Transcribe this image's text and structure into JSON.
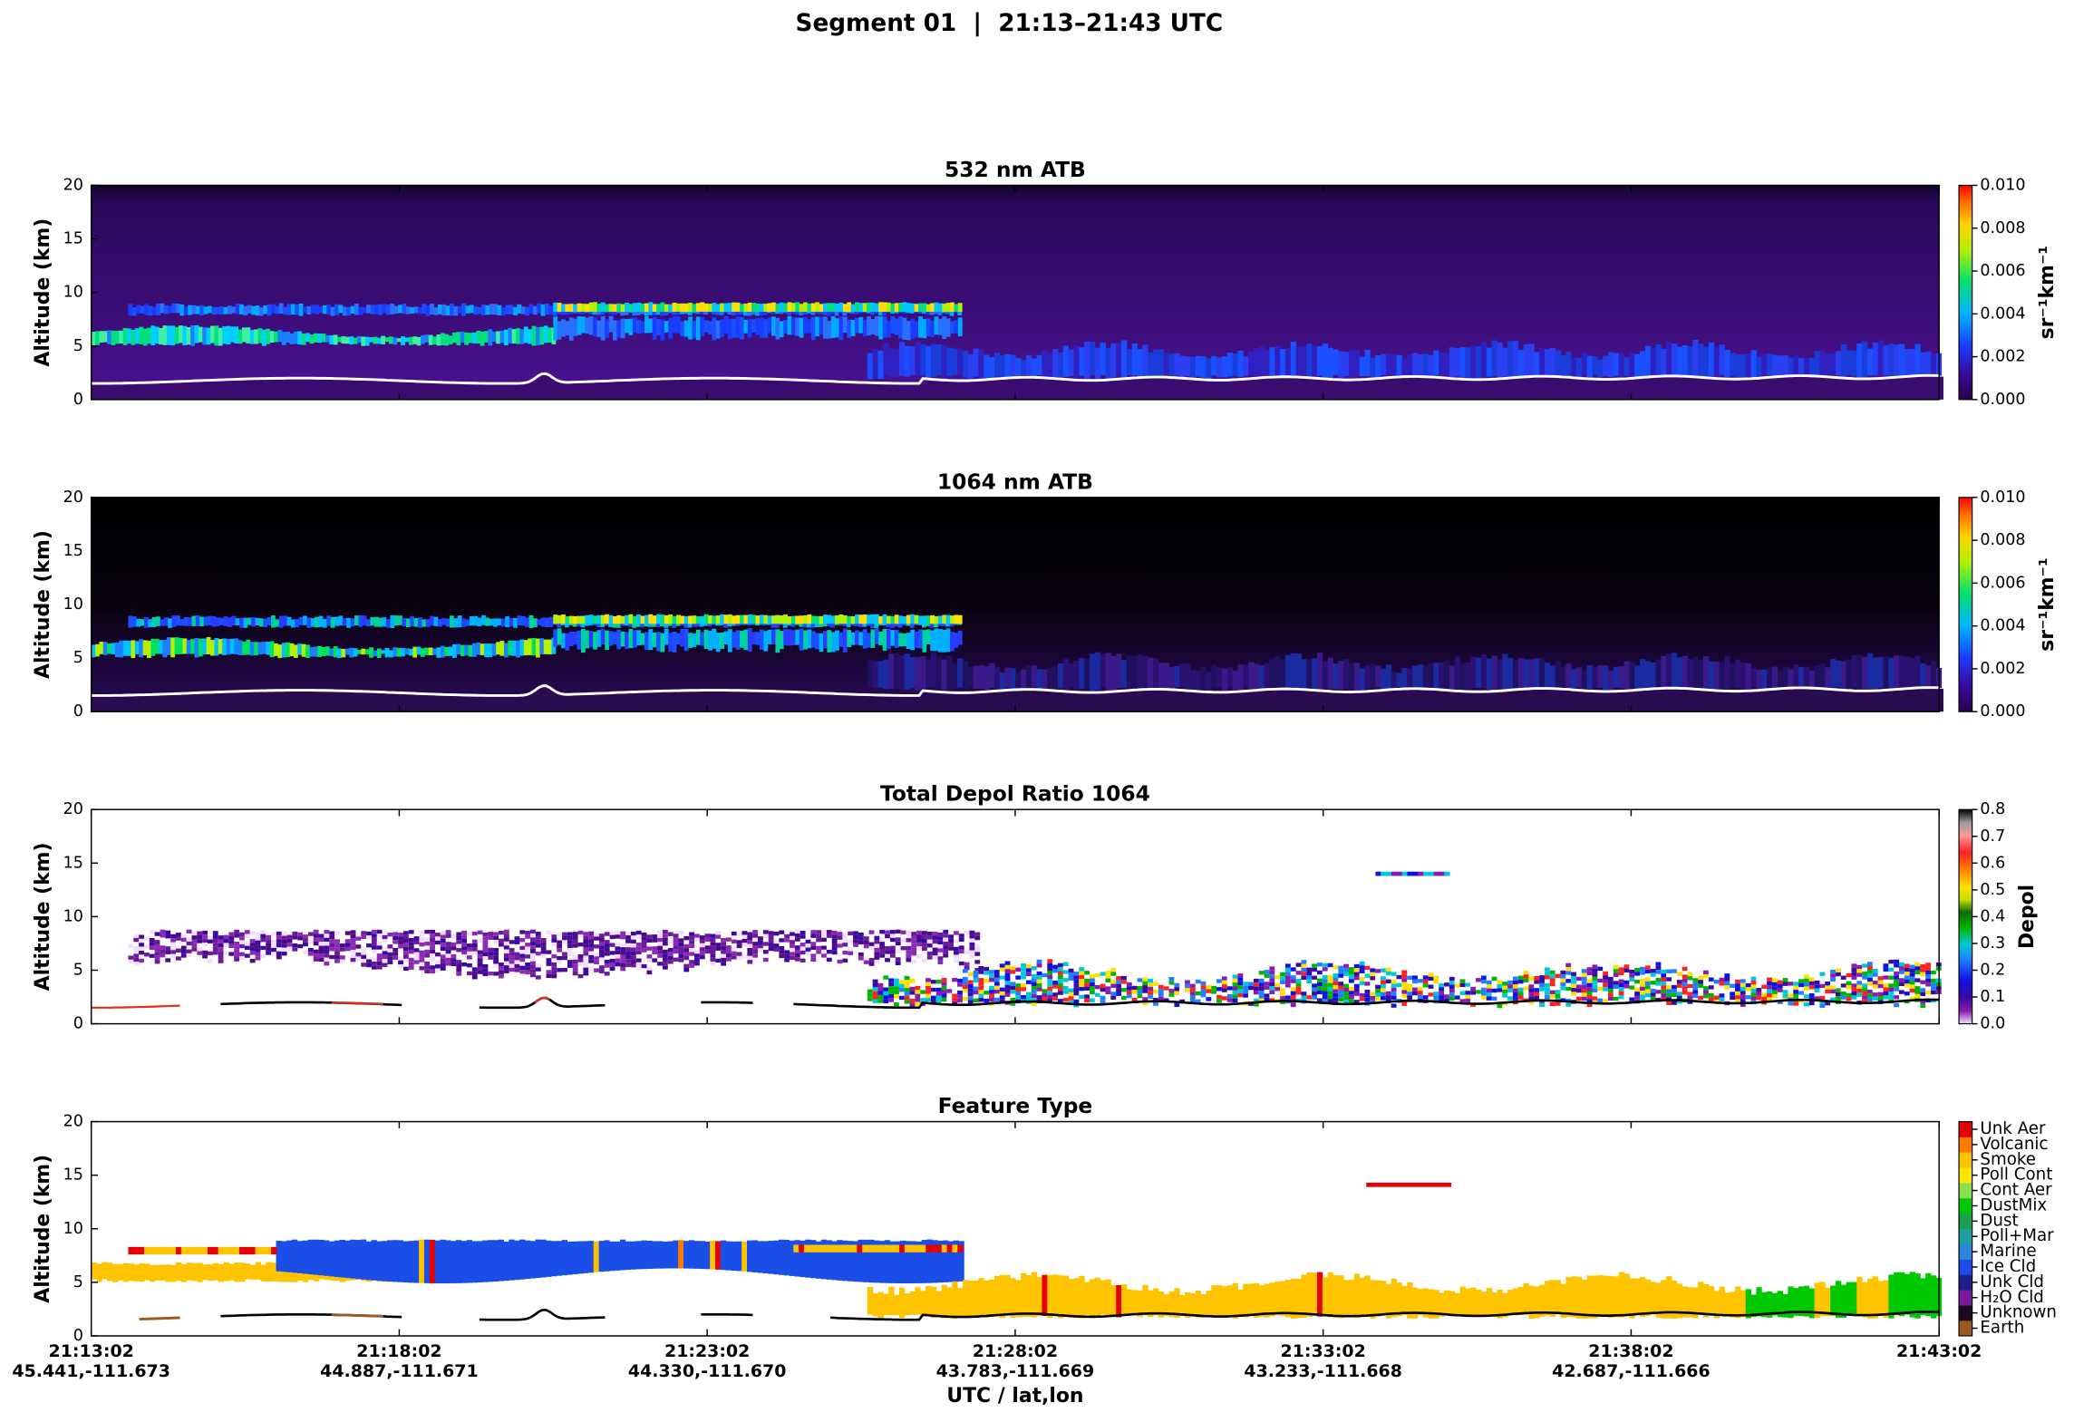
{
  "suptitle": "Segment 01  |  21:13–21:43 UTC",
  "chart_data": [
    {
      "type": "heatmap",
      "title": "532 nm ATB",
      "ylabel": "Altitude (km)",
      "ylim": [
        0,
        20
      ],
      "yticks": [
        0,
        5,
        10,
        15,
        20
      ],
      "clim": [
        0,
        0.01
      ],
      "clabel": "sr⁻¹km⁻¹",
      "cticks": [
        {
          "value": 0,
          "label": "0.000"
        },
        {
          "value": 0.002,
          "label": "0.002"
        },
        {
          "value": 0.004,
          "label": "0.004"
        },
        {
          "value": 0.006,
          "label": "0.006"
        },
        {
          "value": 0.008,
          "label": "0.008"
        },
        {
          "value": 0.01,
          "label": "0.010"
        }
      ]
    },
    {
      "type": "heatmap",
      "title": "1064 nm ATB",
      "ylabel": "Altitude (km)",
      "ylim": [
        0,
        20
      ],
      "yticks": [
        0,
        5,
        10,
        15,
        20
      ],
      "clim": [
        0,
        0.01
      ],
      "clabel": "sr⁻¹km⁻¹",
      "cticks": [
        {
          "value": 0,
          "label": "0.000"
        },
        {
          "value": 0.002,
          "label": "0.002"
        },
        {
          "value": 0.004,
          "label": "0.004"
        },
        {
          "value": 0.006,
          "label": "0.006"
        },
        {
          "value": 0.008,
          "label": "0.008"
        },
        {
          "value": 0.01,
          "label": "0.010"
        }
      ]
    },
    {
      "type": "depol",
      "title": "Total Depol Ratio 1064",
      "ylabel": "Altitude (km)",
      "ylim": [
        0,
        20
      ],
      "yticks": [
        0,
        5,
        10,
        15,
        20
      ],
      "clim": [
        0,
        0.8
      ],
      "clabel": "Depol",
      "cticks": [
        {
          "value": 0,
          "label": "0.0"
        },
        0.1,
        0.2,
        0.3,
        0.4,
        0.5,
        0.6,
        0.7,
        0.8
      ]
    },
    {
      "type": "feature",
      "title": "Feature Type",
      "ylabel": "Altitude (km)",
      "ylim": [
        0,
        20
      ],
      "yticks": [
        0,
        5,
        10,
        15,
        20
      ],
      "classes": [
        "Earth",
        "Unknown",
        "H₂O Cld",
        "Unk Cld",
        "Ice Cld",
        "Marine",
        "Poll+Mar",
        "Dust",
        "DustMix",
        "Cont Aer",
        "Poll Cont",
        "Smoke",
        "Volcanic",
        "Unk Aer"
      ],
      "class_colors": [
        "#9a5a1e",
        "#1a0a20",
        "#7a1a9a",
        "#1e1e8c",
        "#1a4ee6",
        "#2a86d8",
        "#1aa0a0",
        "#1aa050",
        "#00c800",
        "#8ae04a",
        "#ffe600",
        "#ffc400",
        "#ff7a00",
        "#e60000"
      ],
      "xlabel": "UTC / lat,lon",
      "categories": [
        "21:13:02",
        "21:18:02",
        "21:23:02",
        "21:28:02",
        "21:33:02",
        "21:38:02",
        "21:43:02"
      ],
      "latlon": [
        "45.441,-111.673",
        "44.887,-111.671",
        "44.330,-111.670",
        "43.783,-111.669",
        "43.233,-111.668",
        "42.687,-111.666",
        null
      ]
    }
  ]
}
